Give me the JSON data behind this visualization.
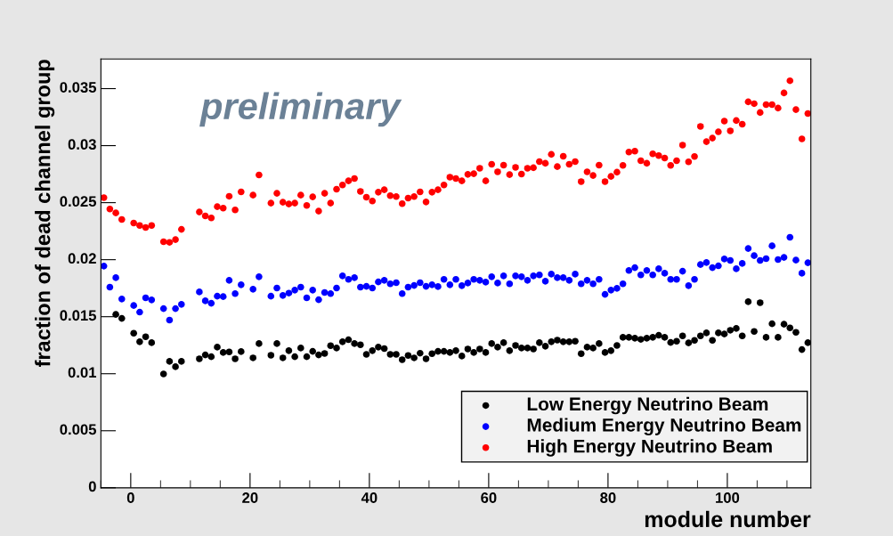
{
  "chart_data": {
    "type": "scatter",
    "xlabel": "module number",
    "ylabel": "fraction of dead channel group",
    "annotations": [
      "preliminary"
    ],
    "x": [
      -4.5,
      -3.5,
      -2.5,
      -1.5,
      -0.5,
      0.5,
      1.5,
      2.5,
      3.5,
      4.5,
      5.5,
      6.5,
      7.5,
      8.5,
      9.5,
      10.5,
      11.5,
      12.5,
      13.5,
      14.5,
      15.5,
      16.5,
      17.5,
      18.5,
      19.5,
      20.5,
      21.5,
      22.5,
      23.5,
      24.5,
      25.5,
      26.5,
      27.5,
      28.5,
      29.5,
      30.5,
      31.5,
      32.5,
      33.5,
      34.5,
      35.5,
      36.5,
      37.5,
      38.5,
      39.5,
      40.5,
      41.5,
      42.5,
      43.5,
      44.5,
      45.5,
      46.5,
      47.5,
      48.5,
      49.5,
      50.5,
      51.5,
      52.5,
      53.5,
      54.5,
      55.5,
      56.5,
      57.5,
      58.5,
      59.5,
      60.5,
      61.5,
      62.5,
      63.5,
      64.5,
      65.5,
      66.5,
      67.5,
      68.5,
      69.5,
      70.5,
      71.5,
      72.5,
      73.5,
      74.5,
      75.5,
      76.5,
      77.5,
      78.5,
      79.5,
      80.5,
      81.5,
      82.5,
      83.5,
      84.5,
      85.5,
      86.5,
      87.5,
      88.5,
      89.5,
      90.5,
      91.5,
      92.5,
      93.5,
      94.5,
      95.5,
      96.5,
      97.5,
      98.5,
      99.5,
      100.5,
      101.5,
      102.5,
      103.5,
      104.5,
      105.5,
      106.5,
      107.5,
      108.5,
      109.5,
      110.5,
      111.5,
      112.5,
      113.5
    ],
    "series": [
      {
        "name": "Low Energy Neutrino Beam",
        "color": "#000000",
        "values": [
          null,
          null,
          0.0152,
          0.01485,
          null,
          0.01355,
          0.0128,
          0.01324,
          0.01272,
          null,
          0.00998,
          0.01108,
          0.01061,
          0.01108,
          null,
          null,
          0.01131,
          0.01165,
          0.01149,
          0.01233,
          0.01186,
          0.01191,
          0.01131,
          0.01194,
          null,
          0.01139,
          0.01264,
          null,
          0.01162,
          0.01264,
          0.01139,
          0.01202,
          0.01149,
          0.01225,
          0.01149,
          0.01196,
          0.01165,
          0.01178,
          0.01246,
          0.01225,
          0.0128,
          0.01298,
          0.01264,
          0.01254,
          0.0117,
          0.01202,
          0.01233,
          0.0122,
          0.0117,
          0.0117,
          0.01123,
          0.0116,
          0.01139,
          0.0118,
          0.01131,
          0.01176,
          0.01196,
          0.01196,
          0.01186,
          0.01202,
          0.01155,
          0.01217,
          0.01186,
          0.01217,
          0.01186,
          0.01264,
          0.01233,
          0.01272,
          0.01202,
          0.01248,
          0.01225,
          0.01225,
          0.01217,
          0.01272,
          0.01241,
          0.0128,
          0.01295,
          0.0128,
          0.0128,
          0.01285,
          0.01176,
          0.01233,
          0.01225,
          0.01264,
          0.01186,
          0.01202,
          0.01248,
          0.01319,
          0.01319,
          0.01311,
          0.01301,
          0.01311,
          0.01319,
          0.01337,
          0.01319,
          0.01274,
          0.01285,
          0.01332,
          0.0127,
          0.01293,
          0.01332,
          0.01358,
          0.01293,
          0.01358,
          0.01348,
          0.01381,
          0.01397,
          0.01332,
          0.01631,
          0.01371,
          0.01623,
          0.01319,
          0.01438,
          0.01319,
          0.01434,
          0.01402,
          0.01363,
          0.01212,
          0.01272
        ]
      },
      {
        "name": "Medium Energy Neutrino Beam",
        "color": "#0000ff",
        "values": [
          0.01944,
          0.01759,
          0.01842,
          0.01655,
          null,
          0.01598,
          0.0154,
          0.01665,
          0.01647,
          null,
          0.01571,
          0.0147,
          0.01571,
          0.01608,
          null,
          null,
          0.01717,
          0.01639,
          0.01618,
          0.0168,
          0.01676,
          0.01819,
          0.01702,
          0.0178,
          null,
          0.01741,
          0.0185,
          null,
          0.0168,
          0.01751,
          0.01686,
          0.01707,
          0.01733,
          0.01759,
          0.01665,
          0.01733,
          0.01649,
          0.01712,
          0.01702,
          0.01751,
          0.01858,
          0.01827,
          0.01842,
          0.01759,
          0.01766,
          0.01751,
          0.01805,
          0.01819,
          0.01788,
          0.01798,
          0.01702,
          0.01759,
          0.01774,
          0.01798,
          0.01766,
          0.0178,
          0.01764,
          0.01827,
          0.0178,
          0.01827,
          0.01772,
          0.01795,
          0.01827,
          0.01819,
          0.01803,
          0.0185,
          0.01795,
          0.01858,
          0.01788,
          0.01858,
          0.0185,
          0.01819,
          0.01858,
          0.01866,
          0.01811,
          0.01873,
          0.01842,
          0.01842,
          0.01819,
          0.01873,
          0.01788,
          0.01819,
          0.01788,
          0.01827,
          0.01696,
          0.01733,
          0.01748,
          0.01788,
          0.01905,
          0.0193,
          0.01866,
          0.01905,
          0.01866,
          0.0192,
          0.01881,
          0.01827,
          0.01827,
          0.01899,
          0.01772,
          0.01827,
          0.01957,
          0.01975,
          0.0193,
          0.01946,
          0.02006,
          0.01993,
          0.0192,
          0.01967,
          0.02098,
          0.02035,
          0.01993,
          0.02009,
          0.02121,
          0.02001,
          0.0202,
          0.02196,
          0.01996,
          0.01881,
          0.01973
        ]
      },
      {
        "name": "High Energy Neutrino Beam",
        "color": "#ff0000",
        "values": [
          0.02544,
          0.02444,
          0.0241,
          0.02352,
          null,
          0.02321,
          0.023,
          0.02282,
          0.023,
          null,
          0.02157,
          0.02152,
          0.02176,
          0.02266,
          null,
          null,
          0.02418,
          0.02384,
          0.02366,
          0.02465,
          0.02452,
          0.02556,
          0.02436,
          0.02595,
          null,
          0.02566,
          0.02743,
          null,
          0.02496,
          0.02582,
          0.02504,
          0.02488,
          0.02496,
          0.02566,
          0.02475,
          0.02551,
          0.02426,
          0.02582,
          0.02496,
          0.02618,
          0.02655,
          0.02691,
          0.02712,
          0.02598,
          0.02548,
          0.02514,
          0.02592,
          0.02613,
          0.02561,
          0.02553,
          0.02491,
          0.0254,
          0.02553,
          0.02595,
          0.02506,
          0.02592,
          0.02613,
          0.02655,
          0.02723,
          0.02712,
          0.02691,
          0.02748,
          0.02754,
          0.02801,
          0.02691,
          0.02837,
          0.0277,
          0.02829,
          0.02746,
          0.02809,
          0.02751,
          0.02801,
          0.02806,
          0.0286,
          0.02845,
          0.02923,
          0.02816,
          0.02907,
          0.02837,
          0.0286,
          0.02684,
          0.0277,
          0.02738,
          0.02829,
          0.02684,
          0.0273,
          0.02767,
          0.02827,
          0.02944,
          0.02952,
          0.02868,
          0.02845,
          0.02928,
          0.02913,
          0.02891,
          0.02827,
          0.02868,
          0.03004,
          0.02858,
          0.02905,
          0.03168,
          0.03035,
          0.03066,
          0.03121,
          0.03215,
          0.03129,
          0.0322,
          0.03188,
          0.03384,
          0.03368,
          0.0329,
          0.0336,
          0.0336,
          0.03329,
          0.03462,
          0.03569,
          0.03316,
          0.03059,
          0.03282
        ]
      }
    ],
    "xlim": [
      -5,
      114
    ],
    "xticks": [
      0,
      20,
      40,
      60,
      80,
      100
    ],
    "ylim": [
      0,
      0.0376
    ],
    "yticks": [
      0,
      0.005,
      0.01,
      0.015,
      0.02,
      0.025,
      0.03,
      0.035
    ],
    "grid": false,
    "legend": "bottom right",
    "marker": "circle"
  }
}
